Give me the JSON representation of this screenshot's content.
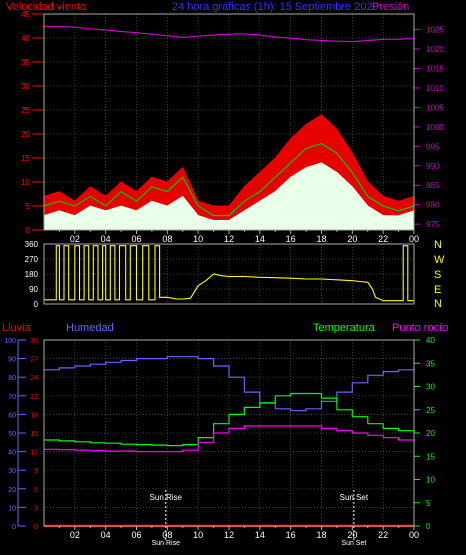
{
  "header": {
    "wind_label": "Velocidad viento",
    "title": "24 hora gráficas (1h): 15 Septiembre 2020",
    "pressure_label": "Presión"
  },
  "colors": {
    "wind_avg": "#ffffff",
    "wind_gust": "#ff0000",
    "wind_mid": "#00cc00",
    "pressure": "#cc00cc",
    "direction": "#ffff00",
    "rain": "#ff0000",
    "humidity": "#6666ff",
    "temperature": "#00ff00",
    "dewpoint": "#ff00ff",
    "title": "#3333ff",
    "grid": "#555555"
  },
  "x_ticks": [
    "02",
    "04",
    "06",
    "08",
    "10",
    "12",
    "14",
    "16",
    "18",
    "20",
    "22",
    "00"
  ],
  "chart_data": [
    {
      "type": "line",
      "name": "wind-pressure",
      "y_left_ticks": [
        "0",
        "5",
        "10",
        "15",
        "20",
        "25",
        "30",
        "35",
        "40",
        "45"
      ],
      "y_right_ticks": [
        "975",
        "980",
        "985",
        "990",
        "995",
        "1000",
        "1005",
        "1010",
        "1015",
        "1020",
        "1025"
      ],
      "ylim_left": [
        0,
        45
      ],
      "ylim_right": [
        973.5,
        1029
      ],
      "x": [
        0,
        1,
        2,
        3,
        4,
        5,
        6,
        7,
        8,
        9,
        10,
        11,
        12,
        13,
        14,
        15,
        16,
        17,
        18,
        19,
        20,
        21,
        22,
        23,
        24
      ],
      "series": [
        {
          "key": "wind_gust",
          "values": [
            7,
            8,
            6,
            9,
            7,
            10,
            8,
            11,
            10,
            13,
            6,
            5,
            5,
            9,
            12,
            15,
            19,
            22,
            24,
            21,
            16,
            10,
            7,
            6,
            7
          ]
        },
        {
          "key": "wind_mid",
          "values": [
            5,
            6,
            5,
            7,
            5,
            8,
            6,
            9,
            8,
            11,
            5,
            3,
            3,
            6,
            8,
            11,
            14,
            17,
            18,
            16,
            12,
            7,
            5,
            4,
            5
          ]
        },
        {
          "key": "wind_avg",
          "values": [
            3,
            4,
            3,
            5,
            4,
            5,
            4,
            6,
            5,
            7,
            3,
            2,
            2,
            4,
            6,
            8,
            11,
            13,
            14,
            12,
            9,
            5,
            3,
            3,
            4
          ]
        },
        {
          "key": "pressure",
          "values": [
            1025.8,
            1025.8,
            1025.6,
            1025.2,
            1024.9,
            1024.5,
            1024.2,
            1023.8,
            1023.4,
            1023,
            1023.3,
            1023.6,
            1023.8,
            1023.9,
            1023.6,
            1023.1,
            1022.8,
            1022.4,
            1022.2,
            1022,
            1021.9,
            1022.2,
            1022.5,
            1022.5,
            1022.7
          ]
        }
      ]
    },
    {
      "type": "line",
      "name": "wind-direction",
      "y_left_ticks": [
        "0",
        "90",
        "180",
        "270",
        "360"
      ],
      "y_right_ticks": [
        "N",
        "W",
        "S",
        "E",
        "N"
      ],
      "ylim": [
        0,
        360
      ],
      "x": [
        0,
        0.8,
        0.8,
        1,
        1,
        1.3,
        1.3,
        1.6,
        1.6,
        2,
        2,
        2.3,
        2.3,
        2.6,
        2.6,
        2.9,
        2.9,
        3.2,
        3.2,
        3.5,
        3.5,
        3.8,
        3.8,
        4,
        4,
        4.3,
        4.3,
        4.6,
        4.6,
        4.9,
        4.9,
        5.3,
        5.3,
        5.6,
        5.6,
        6,
        6,
        6.4,
        6.4,
        6.8,
        6.8,
        7.2,
        7.2,
        7.5,
        7.5,
        8,
        8.3,
        8.6,
        9,
        9.5,
        10,
        10.5,
        11,
        11.5,
        12,
        13,
        14,
        15,
        16,
        17,
        18,
        19,
        20,
        20.5,
        21,
        21.3,
        21.5,
        22,
        22.5,
        22.8,
        23,
        23.3,
        23.3,
        23.6,
        23.6,
        24
      ],
      "values": [
        25,
        25,
        350,
        350,
        25,
        25,
        350,
        350,
        25,
        25,
        350,
        350,
        25,
        25,
        350,
        350,
        25,
        25,
        350,
        350,
        25,
        25,
        350,
        350,
        25,
        25,
        350,
        350,
        25,
        25,
        350,
        350,
        25,
        25,
        350,
        350,
        25,
        25,
        350,
        350,
        25,
        25,
        350,
        350,
        40,
        40,
        35,
        30,
        30,
        35,
        110,
        140,
        180,
        170,
        165,
        165,
        160,
        158,
        155,
        150,
        150,
        145,
        140,
        135,
        130,
        90,
        40,
        20,
        20,
        20,
        20,
        20,
        350,
        350,
        20,
        20
      ]
    },
    {
      "type": "line",
      "name": "rain-humidity-temp-dew",
      "y_left_ticks_rain": [
        "0",
        "3",
        "6",
        "9",
        "12",
        "15",
        "18",
        "21",
        "24",
        "27",
        "30"
      ],
      "y_left_ticks_humidity": [
        "0",
        "10",
        "20",
        "30",
        "40",
        "50",
        "60",
        "70",
        "80",
        "90",
        "100"
      ],
      "y_right_ticks": [
        "0",
        "5",
        "10",
        "15",
        "20",
        "25",
        "30",
        "35",
        "40"
      ],
      "ylim_humidity": [
        0,
        100
      ],
      "ylim_temperature": [
        0,
        40
      ],
      "x": [
        0,
        1,
        2,
        3,
        4,
        5,
        6,
        7,
        8,
        9,
        10,
        11,
        12,
        13,
        14,
        15,
        16,
        17,
        18,
        19,
        20,
        21,
        22,
        23,
        24
      ],
      "series": [
        {
          "key": "humidity",
          "legend": "Humedad",
          "values": [
            84,
            85,
            86,
            87,
            88,
            89,
            90,
            90,
            91,
            91,
            90,
            86,
            80,
            72,
            66,
            63,
            62,
            63,
            67,
            72,
            77,
            81,
            83,
            84,
            85
          ]
        },
        {
          "key": "temperature",
          "legend": "Temperatura",
          "values": [
            18.5,
            18.3,
            18.1,
            17.9,
            17.8,
            17.6,
            17.5,
            17.4,
            17.3,
            17.5,
            19,
            22,
            24,
            25.5,
            26.5,
            28,
            28.5,
            28.5,
            27.5,
            25,
            23.5,
            22,
            21,
            20.5,
            20
          ]
        },
        {
          "key": "dewpoint",
          "legend": "Punto rocío",
          "values": [
            16.5,
            16.4,
            16.3,
            16.2,
            16.1,
            16.1,
            16,
            16,
            16,
            16.3,
            18,
            20,
            21,
            21.5,
            21.5,
            21.5,
            21.5,
            21.5,
            21,
            20.5,
            20,
            19.5,
            19,
            18.5,
            18
          ]
        },
        {
          "key": "rain",
          "legend": "Lluvia",
          "values": [
            0,
            0,
            0,
            0,
            0,
            0,
            0,
            0,
            0,
            0,
            0,
            0,
            0,
            0,
            0,
            0,
            0,
            0,
            0,
            0,
            0,
            0,
            0,
            0,
            0
          ]
        }
      ],
      "annotations": [
        "Sun Rise",
        "Sun Set"
      ],
      "annotation_x": [
        7.9,
        20.1
      ]
    }
  ],
  "legend_bottom": {
    "rain": "Lluvia",
    "humidity": "Humedad",
    "temperature": "Temperatura",
    "dewpoint": "Punto rocío"
  }
}
